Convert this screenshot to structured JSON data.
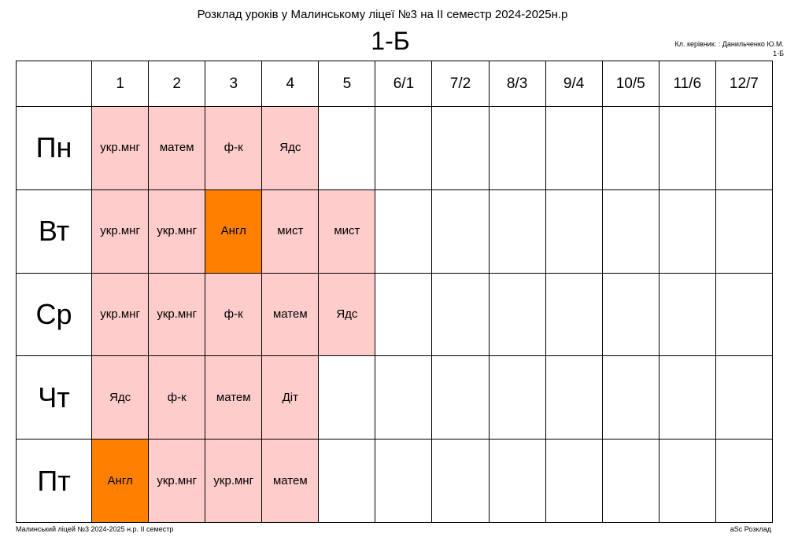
{
  "header": {
    "title": "Розклад уроків у Малинському ліцеї №3 на ІІ семестр 2024-2025н.р",
    "class_name": "1-Б",
    "teacher": "Кл. керівник: : Данильченко Ю.М.",
    "teacher_class": "1-Б"
  },
  "table": {
    "columns": [
      "1",
      "2",
      "3",
      "4",
      "5",
      "6/1",
      "7/2",
      "8/3",
      "9/4",
      "10/5",
      "11/6",
      "12/7"
    ],
    "rows": [
      {
        "day": "Пн",
        "cells": [
          {
            "text": "укр.мнг",
            "color": "#ffcccc"
          },
          {
            "text": "матем",
            "color": "#ffcccc"
          },
          {
            "text": "ф-к",
            "color": "#ffcccc"
          },
          {
            "text": "Ядс",
            "color": "#ffcccc"
          },
          {
            "text": "",
            "color": ""
          },
          {
            "text": "",
            "color": ""
          },
          {
            "text": "",
            "color": ""
          },
          {
            "text": "",
            "color": ""
          },
          {
            "text": "",
            "color": ""
          },
          {
            "text": "",
            "color": ""
          },
          {
            "text": "",
            "color": ""
          },
          {
            "text": "",
            "color": ""
          }
        ]
      },
      {
        "day": "Вт",
        "cells": [
          {
            "text": "укр.мнг",
            "color": "#ffcccc"
          },
          {
            "text": "укр.мнг",
            "color": "#ffcccc"
          },
          {
            "text": "Англ",
            "color": "#ff8000"
          },
          {
            "text": "мист",
            "color": "#ffcccc"
          },
          {
            "text": "мист",
            "color": "#ffcccc"
          },
          {
            "text": "",
            "color": ""
          },
          {
            "text": "",
            "color": ""
          },
          {
            "text": "",
            "color": ""
          },
          {
            "text": "",
            "color": ""
          },
          {
            "text": "",
            "color": ""
          },
          {
            "text": "",
            "color": ""
          },
          {
            "text": "",
            "color": ""
          }
        ]
      },
      {
        "day": "Ср",
        "cells": [
          {
            "text": "укр.мнг",
            "color": "#ffcccc"
          },
          {
            "text": "укр.мнг",
            "color": "#ffcccc"
          },
          {
            "text": "ф-к",
            "color": "#ffcccc"
          },
          {
            "text": "матем",
            "color": "#ffcccc"
          },
          {
            "text": "Ядс",
            "color": "#ffcccc"
          },
          {
            "text": "",
            "color": ""
          },
          {
            "text": "",
            "color": ""
          },
          {
            "text": "",
            "color": ""
          },
          {
            "text": "",
            "color": ""
          },
          {
            "text": "",
            "color": ""
          },
          {
            "text": "",
            "color": ""
          },
          {
            "text": "",
            "color": ""
          }
        ]
      },
      {
        "day": "Чт",
        "cells": [
          {
            "text": "Ядс",
            "color": "#ffcccc"
          },
          {
            "text": "ф-к",
            "color": "#ffcccc"
          },
          {
            "text": "матем",
            "color": "#ffcccc"
          },
          {
            "text": "Діт",
            "color": "#ffcccc"
          },
          {
            "text": "",
            "color": ""
          },
          {
            "text": "",
            "color": ""
          },
          {
            "text": "",
            "color": ""
          },
          {
            "text": "",
            "color": ""
          },
          {
            "text": "",
            "color": ""
          },
          {
            "text": "",
            "color": ""
          },
          {
            "text": "",
            "color": ""
          },
          {
            "text": "",
            "color": ""
          }
        ]
      },
      {
        "day": "Пт",
        "cells": [
          {
            "text": "Англ",
            "color": "#ff8000"
          },
          {
            "text": "укр.мнг",
            "color": "#ffcccc"
          },
          {
            "text": "укр.мнг",
            "color": "#ffcccc"
          },
          {
            "text": "матем",
            "color": "#ffcccc"
          },
          {
            "text": "",
            "color": ""
          },
          {
            "text": "",
            "color": ""
          },
          {
            "text": "",
            "color": ""
          },
          {
            "text": "",
            "color": ""
          },
          {
            "text": "",
            "color": ""
          },
          {
            "text": "",
            "color": ""
          },
          {
            "text": "",
            "color": ""
          },
          {
            "text": "",
            "color": ""
          }
        ]
      }
    ]
  },
  "footer": {
    "left": "Малинський ліцей №3  2024-2025 н.р. ІІ семестр",
    "right": "aSc Розклад"
  }
}
